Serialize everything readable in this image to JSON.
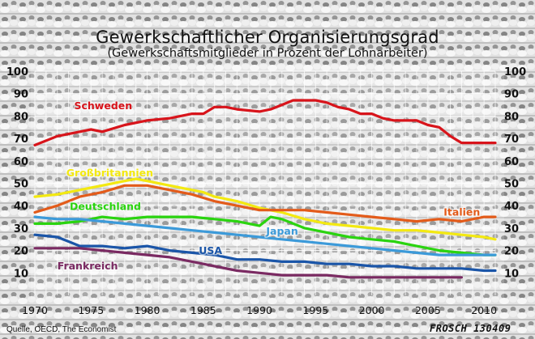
{
  "chart_data": {
    "type": "line",
    "title": "Gewerkschaftlicher Organisierungsgrad",
    "subtitle": "(Gewerkschaftsmitglieder in Prozent der Lohnarbeiter)",
    "source": "Quelle, OECD, The Economist",
    "signature": "FROSCH 130409",
    "xlim": [
      1970,
      2011
    ],
    "ylim": [
      0,
      100
    ],
    "x_ticks": [
      1970,
      1975,
      1980,
      1985,
      1990,
      1995,
      2000,
      2005,
      2010
    ],
    "y_ticks": [
      10,
      20,
      30,
      40,
      50,
      60,
      70,
      80,
      90,
      100
    ],
    "grid": true,
    "series": [
      {
        "name": "Schweden",
        "color": "#d8141b",
        "label_at": [
          1973.5,
          83
        ],
        "points": [
          [
            1970,
            67
          ],
          [
            1972,
            71
          ],
          [
            1974,
            73
          ],
          [
            1975,
            74
          ],
          [
            1976,
            73
          ],
          [
            1978,
            76
          ],
          [
            1980,
            78
          ],
          [
            1982,
            79
          ],
          [
            1984,
            81
          ],
          [
            1985,
            81
          ],
          [
            1986,
            84
          ],
          [
            1987,
            84
          ],
          [
            1988,
            83
          ],
          [
            1990,
            82
          ],
          [
            1991,
            83
          ],
          [
            1992,
            85
          ],
          [
            1993,
            87
          ],
          [
            1994,
            87
          ],
          [
            1995,
            87
          ],
          [
            1996,
            86
          ],
          [
            1997,
            84
          ],
          [
            1998,
            83
          ],
          [
            1999,
            81
          ],
          [
            2000,
            81
          ],
          [
            2001,
            79
          ],
          [
            2002,
            78
          ],
          [
            2003,
            78
          ],
          [
            2004,
            78
          ],
          [
            2005,
            76
          ],
          [
            2006,
            75
          ],
          [
            2007,
            71
          ],
          [
            2008,
            68
          ],
          [
            2009,
            68
          ],
          [
            2010,
            68
          ],
          [
            2011,
            68
          ]
        ]
      },
      {
        "name": "Großbritannien",
        "color": "#f3e911",
        "label_at": [
          1972.8,
          53
        ],
        "points": [
          [
            1970,
            44
          ],
          [
            1972,
            45
          ],
          [
            1974,
            47
          ],
          [
            1975,
            48
          ],
          [
            1976,
            49
          ],
          [
            1978,
            51
          ],
          [
            1979,
            52
          ],
          [
            1980,
            51
          ],
          [
            1982,
            49
          ],
          [
            1984,
            47
          ],
          [
            1985,
            46
          ],
          [
            1986,
            44
          ],
          [
            1988,
            42
          ],
          [
            1990,
            39
          ],
          [
            1992,
            37
          ],
          [
            1994,
            34
          ],
          [
            1996,
            32
          ],
          [
            1998,
            31
          ],
          [
            2000,
            30
          ],
          [
            2002,
            29
          ],
          [
            2004,
            29
          ],
          [
            2006,
            28
          ],
          [
            2008,
            27
          ],
          [
            2010,
            26
          ],
          [
            2011,
            25
          ]
        ]
      },
      {
        "name": "Italien",
        "color": "#e35b1a",
        "label_at": [
          2006.4,
          35.5
        ],
        "points": [
          [
            1970,
            37
          ],
          [
            1972,
            40
          ],
          [
            1974,
            44
          ],
          [
            1976,
            46
          ],
          [
            1978,
            49
          ],
          [
            1980,
            49
          ],
          [
            1982,
            47
          ],
          [
            1984,
            45
          ],
          [
            1986,
            42
          ],
          [
            1988,
            40
          ],
          [
            1990,
            38
          ],
          [
            1992,
            38
          ],
          [
            1994,
            38
          ],
          [
            1996,
            37
          ],
          [
            1998,
            36
          ],
          [
            2000,
            35
          ],
          [
            2002,
            34
          ],
          [
            2004,
            33
          ],
          [
            2006,
            34
          ],
          [
            2008,
            33
          ],
          [
            2010,
            35
          ],
          [
            2011,
            35
          ]
        ]
      },
      {
        "name": "Deutschland",
        "color": "#2ad40f",
        "label_at": [
          1973.1,
          38
        ],
        "points": [
          [
            1970,
            32
          ],
          [
            1972,
            32
          ],
          [
            1974,
            33
          ],
          [
            1976,
            35
          ],
          [
            1978,
            34
          ],
          [
            1980,
            35
          ],
          [
            1982,
            35
          ],
          [
            1984,
            35
          ],
          [
            1986,
            34
          ],
          [
            1988,
            33
          ],
          [
            1990,
            31
          ],
          [
            1991,
            35
          ],
          [
            1992,
            34
          ],
          [
            1994,
            30
          ],
          [
            1996,
            28
          ],
          [
            1998,
            26
          ],
          [
            2000,
            25
          ],
          [
            2002,
            24
          ],
          [
            2004,
            22
          ],
          [
            2006,
            20
          ],
          [
            2008,
            19
          ],
          [
            2010,
            18
          ],
          [
            2011,
            18
          ]
        ]
      },
      {
        "name": "Japan",
        "color": "#3c9ad9",
        "label_at": [
          1990.6,
          27
        ],
        "points": [
          [
            1970,
            35
          ],
          [
            1972,
            34
          ],
          [
            1974,
            34
          ],
          [
            1976,
            33
          ],
          [
            1978,
            32
          ],
          [
            1980,
            31
          ],
          [
            1982,
            30
          ],
          [
            1984,
            29
          ],
          [
            1986,
            28
          ],
          [
            1988,
            27
          ],
          [
            1990,
            26
          ],
          [
            1992,
            25
          ],
          [
            1994,
            24
          ],
          [
            1996,
            23
          ],
          [
            1998,
            22
          ],
          [
            2000,
            21
          ],
          [
            2002,
            20
          ],
          [
            2004,
            19
          ],
          [
            2006,
            18
          ],
          [
            2008,
            18
          ],
          [
            2010,
            18
          ],
          [
            2011,
            18
          ]
        ]
      },
      {
        "name": "USA",
        "color": "#1a55a8",
        "label_at": [
          1984.6,
          18.5
        ],
        "points": [
          [
            1970,
            27
          ],
          [
            1972,
            26
          ],
          [
            1973,
            24
          ],
          [
            1974,
            22
          ],
          [
            1976,
            22
          ],
          [
            1978,
            21
          ],
          [
            1980,
            22
          ],
          [
            1982,
            20
          ],
          [
            1984,
            19
          ],
          [
            1986,
            18
          ],
          [
            1988,
            16
          ],
          [
            1990,
            16
          ],
          [
            1992,
            15
          ],
          [
            1994,
            15
          ],
          [
            1996,
            14
          ],
          [
            1998,
            14
          ],
          [
            2000,
            13
          ],
          [
            2002,
            13
          ],
          [
            2004,
            12
          ],
          [
            2006,
            12
          ],
          [
            2008,
            12
          ],
          [
            2010,
            11
          ],
          [
            2011,
            11
          ]
        ]
      },
      {
        "name": "Frankreich",
        "color": "#7a2a62",
        "label_at": [
          1972.0,
          11.5
        ],
        "points": [
          [
            1970,
            21
          ],
          [
            1972,
            21
          ],
          [
            1974,
            21
          ],
          [
            1976,
            20
          ],
          [
            1978,
            19
          ],
          [
            1980,
            18
          ],
          [
            1982,
            17
          ],
          [
            1984,
            15
          ],
          [
            1986,
            13
          ],
          [
            1988,
            11
          ],
          [
            1990,
            10
          ],
          [
            1992,
            9
          ],
          [
            1994,
            9
          ],
          [
            1996,
            9
          ],
          [
            1998,
            8
          ],
          [
            2000,
            8
          ],
          [
            2002,
            8
          ],
          [
            2004,
            8
          ],
          [
            2006,
            8
          ],
          [
            2008,
            8
          ]
        ]
      }
    ]
  }
}
